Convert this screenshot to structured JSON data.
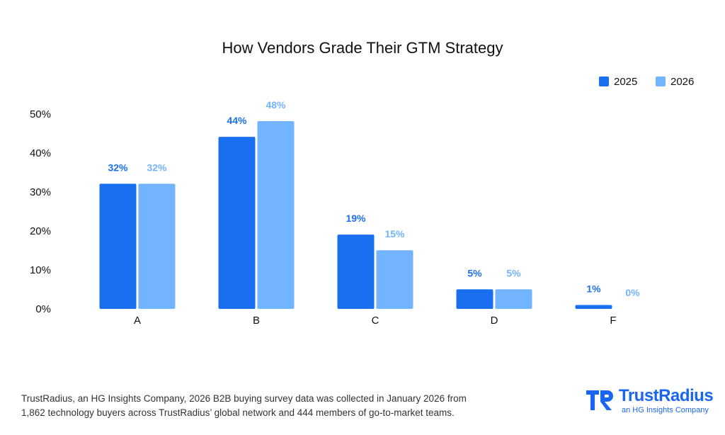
{
  "chart_data": {
    "type": "bar",
    "title": "How Vendors Grade Their GTM Strategy",
    "categories": [
      "A",
      "B",
      "C",
      "D",
      "F"
    ],
    "series": [
      {
        "name": "2025",
        "values": [
          32,
          44,
          19,
          5,
          1
        ],
        "labels": [
          "32%",
          "44%",
          "19%",
          "5%",
          "1%"
        ],
        "color": "#1a6ff0"
      },
      {
        "name": "2026",
        "values": [
          32,
          48,
          15,
          5,
          0
        ],
        "labels": [
          "32%",
          "48%",
          "15%",
          "5%",
          "0%"
        ],
        "color": "#73b4ff"
      }
    ],
    "yticks": [
      "0%",
      "10%",
      "20%",
      "30%",
      "40%",
      "50%"
    ],
    "ylim": [
      0,
      50
    ],
    "grid": false,
    "legend_position": "top-right"
  },
  "footer": {
    "line1": "TrustRadius, an HG Insights Company, 2026 B2B buying survey data was collected in January 2026 from",
    "line2": "1,862 technology buyers across TrustRadius’ global network and 444 members of go-to-market teams."
  },
  "logo": {
    "name": "TrustRadius",
    "subtitle": "an HG Insights Company",
    "color": "#1a66f0"
  }
}
